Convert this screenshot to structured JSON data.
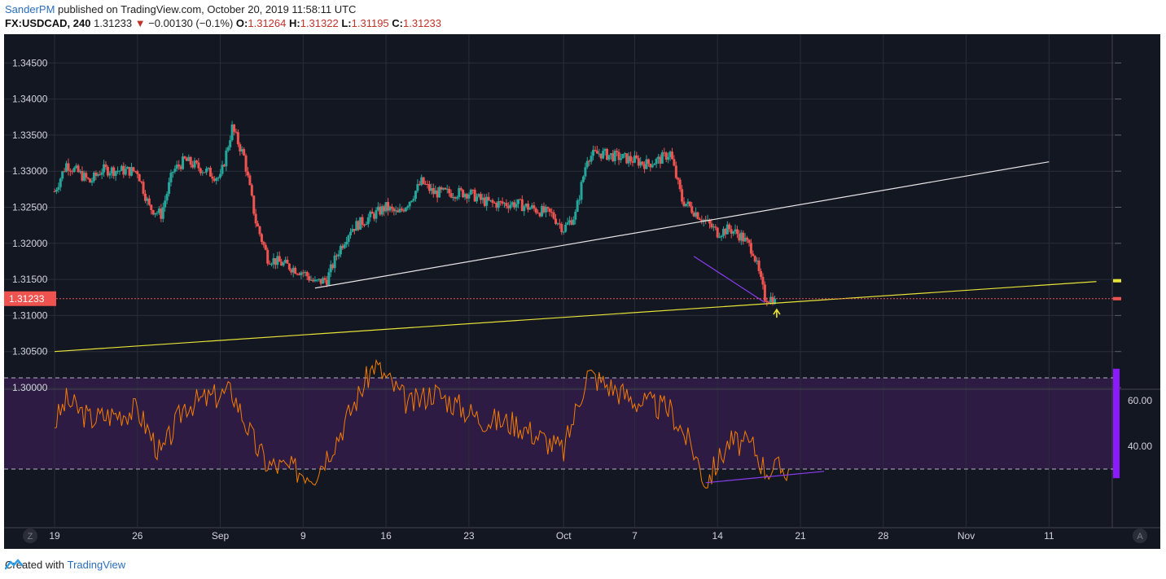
{
  "header": {
    "author": "SanderPM",
    "published_text": "published on TradingView.com, October 20, 2019 11:58:11 UTC",
    "symbol": "FX:USDCAD, 240",
    "last": "1.31233",
    "change_arrow": "▼",
    "change": "−0.00130 (−0.1%)",
    "o_label": "O:",
    "o_value": "1.31264",
    "h_label": "H:",
    "h_value": "1.31322",
    "l_label": "L:",
    "l_value": "1.31195",
    "c_label": "C:",
    "c_value": "1.31233"
  },
  "footer": {
    "created_with": "Created with",
    "brand": "TradingView"
  },
  "corner": {
    "left": "Z",
    "right": "A"
  },
  "colors": {
    "background": "#131722",
    "grid": "#2a2e39",
    "up": "#26a69a",
    "down": "#ef5350",
    "rsi_line": "#f57c00",
    "rsi_band": "#2d1b44",
    "trend_white": "#e6e6e6",
    "trend_yellow": "#e8e337",
    "trend_purple": "#8b3cf0",
    "price_tag": "#ef5350"
  },
  "chart_data": [
    {
      "type": "candlestick",
      "title": "FX:USDCAD, 240",
      "y_range": [
        1.3,
        1.3465
      ],
      "y_ticks": [
        "1.30000",
        "1.30500",
        "1.31000",
        "1.31500",
        "1.32000",
        "1.32500",
        "1.33000",
        "1.33500",
        "1.34000",
        "1.34500"
      ],
      "x_ticks": [
        "19",
        "26",
        "Sep",
        "9",
        "16",
        "23",
        "Oct",
        "7",
        "14",
        "21",
        "28",
        "Nov",
        "11"
      ],
      "last_price_label": "1.31233",
      "last_price": 1.31233,
      "approx_close_path": [
        {
          "date": "2019-08-19",
          "close": 1.3272
        },
        {
          "date": "2019-08-20",
          "close": 1.331
        },
        {
          "date": "2019-08-21",
          "close": 1.3298
        },
        {
          "date": "2019-08-22",
          "close": 1.3285
        },
        {
          "date": "2019-08-23",
          "close": 1.3302
        },
        {
          "date": "2019-08-26",
          "close": 1.33
        },
        {
          "date": "2019-08-27",
          "close": 1.325
        },
        {
          "date": "2019-08-28",
          "close": 1.324
        },
        {
          "date": "2019-08-29",
          "close": 1.33
        },
        {
          "date": "2019-08-30",
          "close": 1.3315
        },
        {
          "date": "2019-09-02",
          "close": 1.329
        },
        {
          "date": "2019-09-03",
          "close": 1.336
        },
        {
          "date": "2019-09-04",
          "close": 1.332
        },
        {
          "date": "2019-09-05",
          "close": 1.323
        },
        {
          "date": "2019-09-06",
          "close": 1.318
        },
        {
          "date": "2019-09-09",
          "close": 1.316
        },
        {
          "date": "2019-09-10",
          "close": 1.3145
        },
        {
          "date": "2019-09-11",
          "close": 1.315
        },
        {
          "date": "2019-09-12",
          "close": 1.319
        },
        {
          "date": "2019-09-13",
          "close": 1.322
        },
        {
          "date": "2019-09-16",
          "close": 1.325
        },
        {
          "date": "2019-09-17",
          "close": 1.324
        },
        {
          "date": "2019-09-18",
          "close": 1.326
        },
        {
          "date": "2019-09-19",
          "close": 1.3285
        },
        {
          "date": "2019-09-20",
          "close": 1.327
        },
        {
          "date": "2019-09-23",
          "close": 1.327
        },
        {
          "date": "2019-09-24",
          "close": 1.326
        },
        {
          "date": "2019-09-25",
          "close": 1.3255
        },
        {
          "date": "2019-09-26",
          "close": 1.3255
        },
        {
          "date": "2019-09-27",
          "close": 1.3255
        },
        {
          "date": "2019-09-30",
          "close": 1.324
        },
        {
          "date": "2019-10-01",
          "close": 1.322
        },
        {
          "date": "2019-10-02",
          "close": 1.324
        },
        {
          "date": "2019-10-03",
          "close": 1.332
        },
        {
          "date": "2019-10-04",
          "close": 1.3325
        },
        {
          "date": "2019-10-07",
          "close": 1.3315
        },
        {
          "date": "2019-10-08",
          "close": 1.331
        },
        {
          "date": "2019-10-09",
          "close": 1.3315
        },
        {
          "date": "2019-10-10",
          "close": 1.3325
        },
        {
          "date": "2019-10-11",
          "close": 1.326
        },
        {
          "date": "2019-10-14",
          "close": 1.3215
        },
        {
          "date": "2019-10-15",
          "close": 1.322
        },
        {
          "date": "2019-10-16",
          "close": 1.321
        },
        {
          "date": "2019-10-17",
          "close": 1.319
        },
        {
          "date": "2019-10-18",
          "close": 1.3125
        },
        {
          "date": "2019-10-18T20:00",
          "close": 1.31233
        }
      ],
      "trendlines": [
        {
          "name": "white",
          "from": {
            "date": "2019-09-10",
            "price": 1.3138
          },
          "to": {
            "date": "2019-11-11",
            "price": 1.3313
          }
        },
        {
          "name": "yellow",
          "from": {
            "date": "2019-08-19",
            "price": 1.305
          },
          "to": {
            "date": "2019-11-15",
            "price": 1.3147
          }
        },
        {
          "name": "purple",
          "from": {
            "date": "2019-10-12",
            "price": 1.3182
          },
          "to": {
            "date": "2019-10-18",
            "price": 1.3118
          }
        }
      ]
    },
    {
      "type": "line",
      "series": [
        {
          "values_approx": [
            {
              "date": "2019-08-19",
              "rsi": 50
            },
            {
              "date": "2019-08-20",
              "rsi": 60
            },
            {
              "date": "2019-08-22",
              "rsi": 52
            },
            {
              "date": "2019-08-26",
              "rsi": 56
            },
            {
              "date": "2019-08-28",
              "rsi": 36
            },
            {
              "date": "2019-08-30",
              "rsi": 58
            },
            {
              "date": "2019-09-03",
              "rsi": 64
            },
            {
              "date": "2019-09-05",
              "rsi": 40
            },
            {
              "date": "2019-09-06",
              "rsi": 32
            },
            {
              "date": "2019-09-10",
              "rsi": 28
            },
            {
              "date": "2019-09-12",
              "rsi": 45
            },
            {
              "date": "2019-09-15",
              "rsi": 76
            },
            {
              "date": "2019-09-18",
              "rsi": 58
            },
            {
              "date": "2019-09-20",
              "rsi": 64
            },
            {
              "date": "2019-09-24",
              "rsi": 52
            },
            {
              "date": "2019-09-27",
              "rsi": 50
            },
            {
              "date": "2019-10-01",
              "rsi": 38
            },
            {
              "date": "2019-10-03",
              "rsi": 72
            },
            {
              "date": "2019-10-07",
              "rsi": 60
            },
            {
              "date": "2019-10-10",
              "rsi": 56
            },
            {
              "date": "2019-10-12",
              "rsi": 38
            },
            {
              "date": "2019-10-13",
              "rsi": 24
            },
            {
              "date": "2019-10-15",
              "rsi": 42
            },
            {
              "date": "2019-10-17",
              "rsi": 40
            },
            {
              "date": "2019-10-18",
              "rsi": 30
            },
            {
              "date": "2019-10-20",
              "rsi": 30
            }
          ]
        }
      ],
      "y_ticks": [
        "60.00",
        "40.00"
      ],
      "bands": [
        30,
        70
      ],
      "divergence_line": {
        "from": {
          "date": "2019-10-13",
          "rsi": 24
        },
        "to": {
          "date": "2019-10-23",
          "rsi": 29
        }
      }
    }
  ]
}
